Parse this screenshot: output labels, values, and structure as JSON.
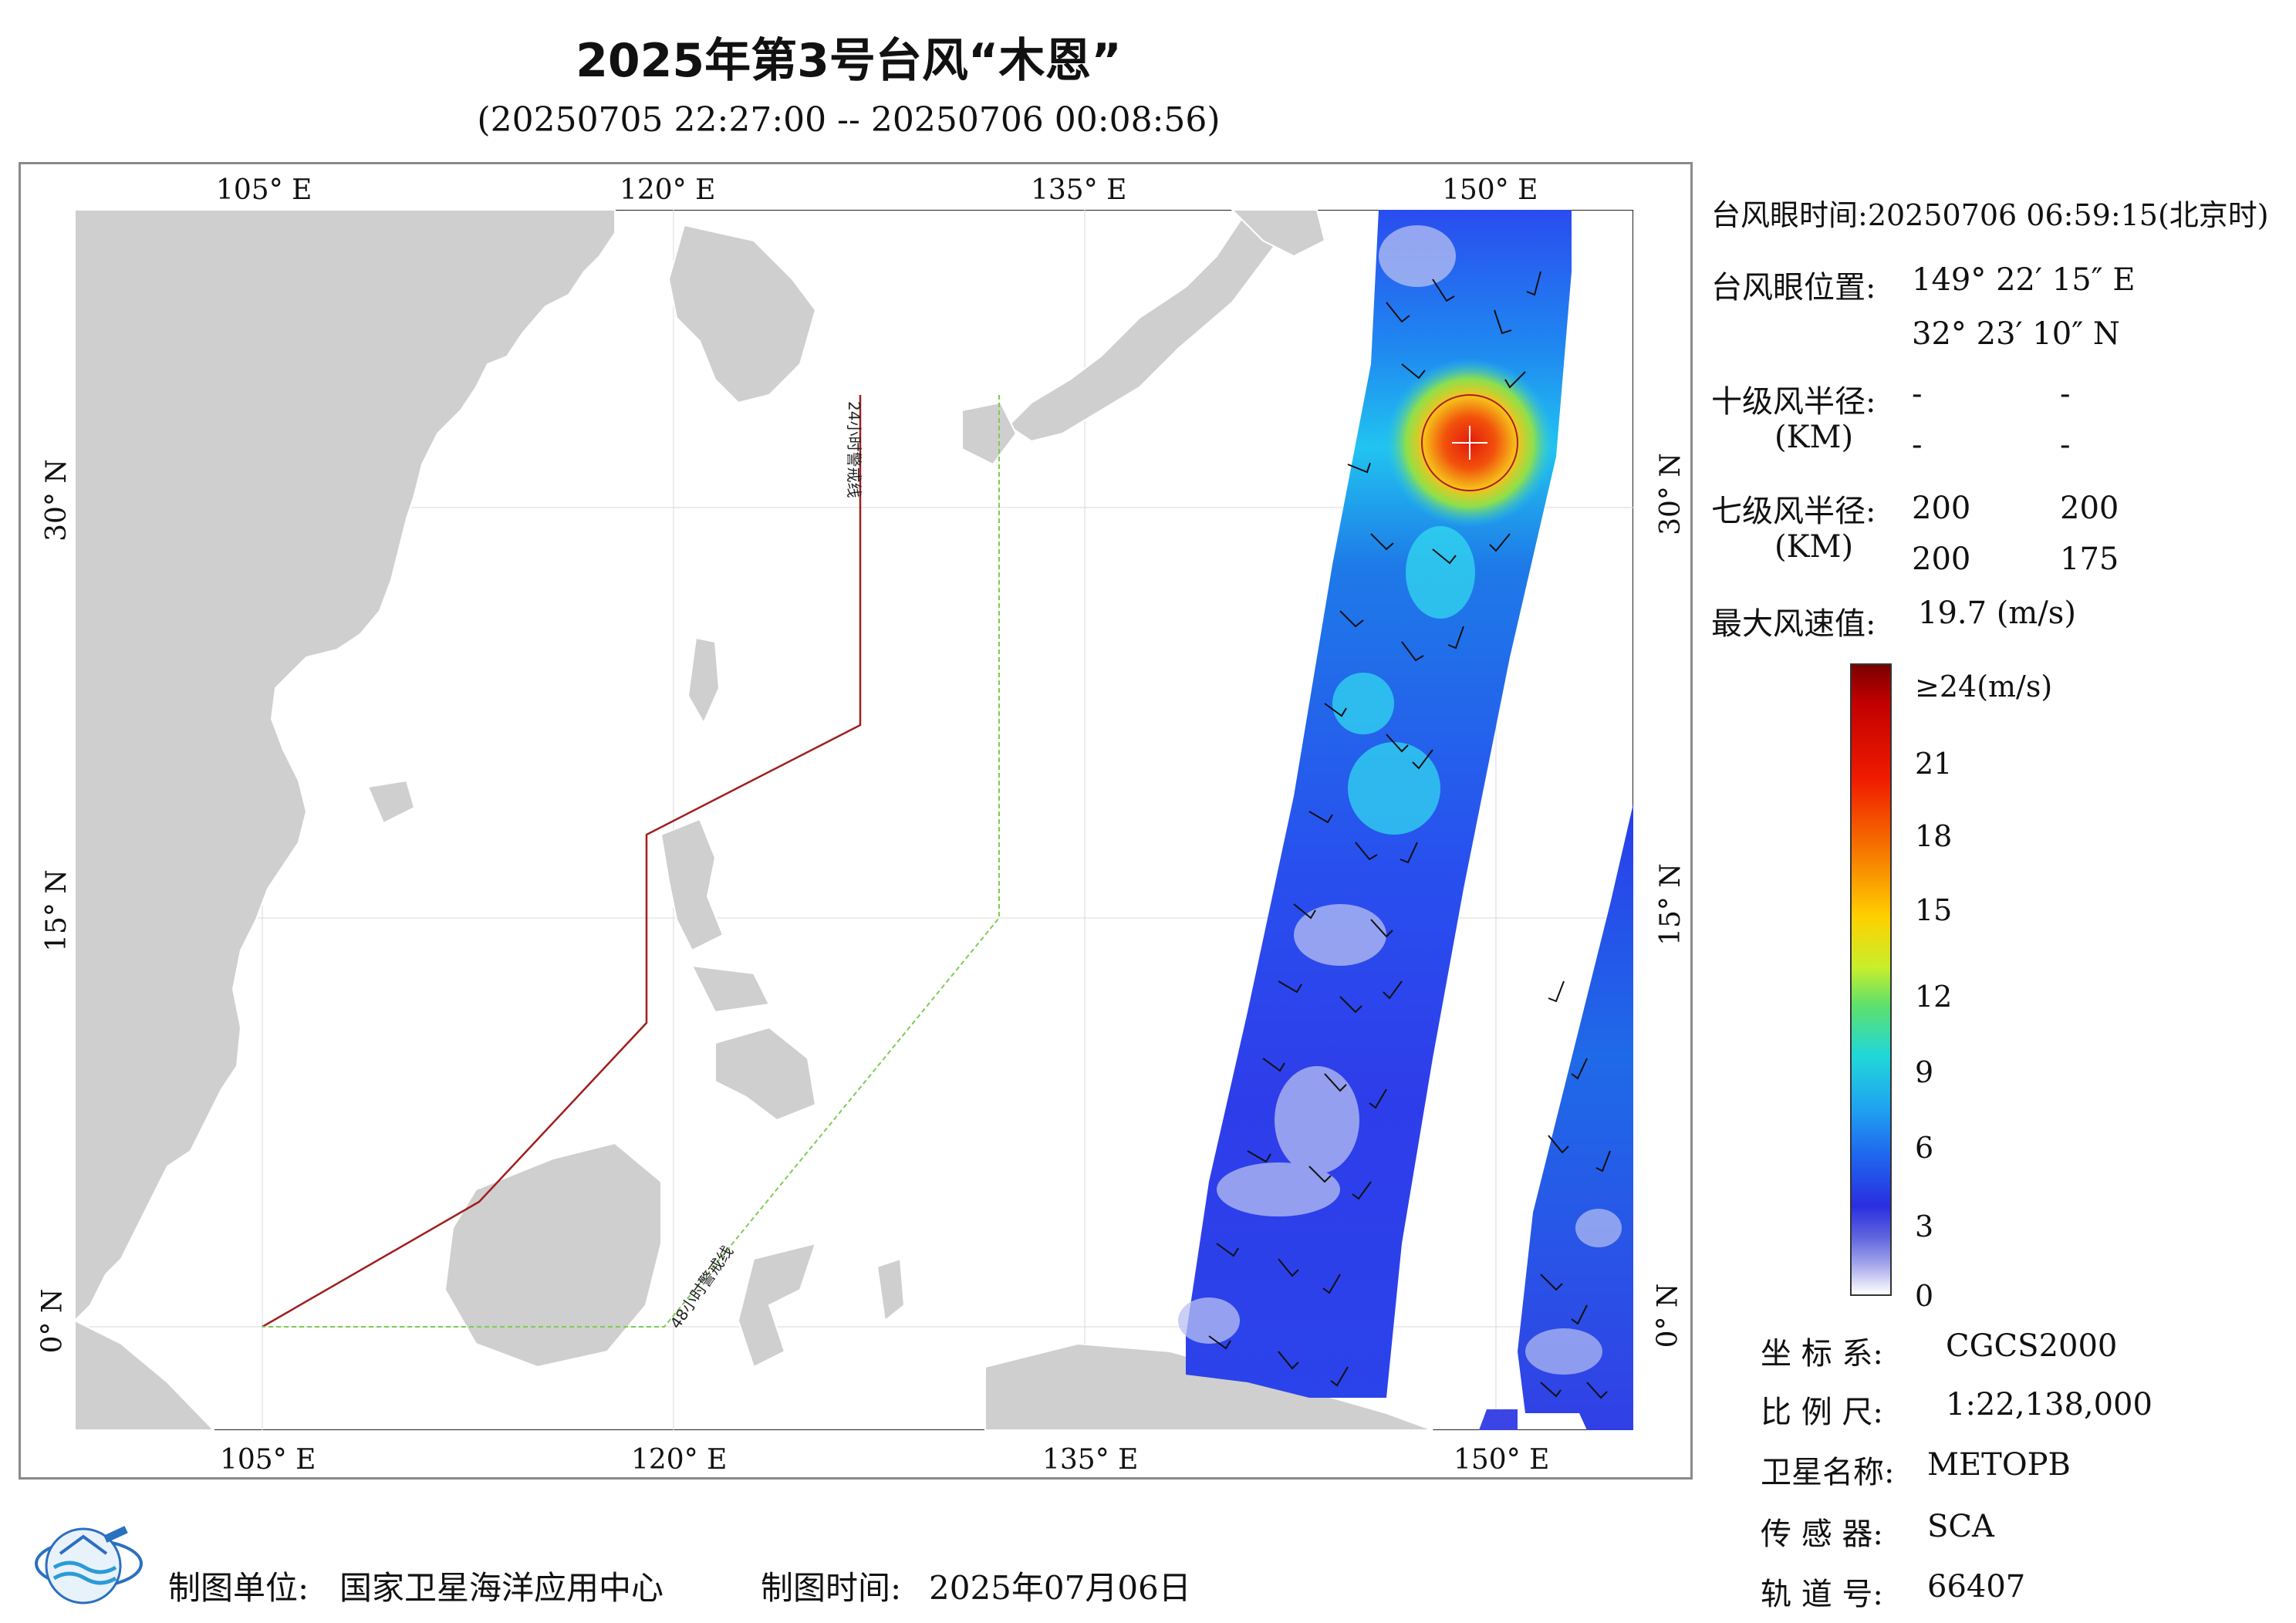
{
  "title": "2025年第3号台风“木恩”",
  "subtitle": "(20250705 22:27:00 -- 20250706 00:08:56)",
  "map": {
    "lon_ticks": [
      "105° E",
      "120° E",
      "135° E",
      "150° E"
    ],
    "lat_ticks": [
      "30° N",
      "15° N",
      "0° N"
    ],
    "warning_24h": "24小时警戒线",
    "warning_48h": "48小时警戒线",
    "colors": {
      "land": "#cfcfcf",
      "warning_24h": "#a11d1d",
      "warning_48h": "#7ccc55"
    }
  },
  "info": {
    "eye_time_label": "台风眼时间:",
    "eye_time": "20250706 06:59:15(北京时)",
    "eye_pos_label": "台风眼位置:",
    "eye_lon": "149° 22′ 15″ E",
    "eye_lat": "32° 23′ 10″ N",
    "r10_label": "十级风半径:",
    "r10_unit": "(KM)",
    "r10_values": [
      "-",
      "-",
      "-",
      "-"
    ],
    "r7_label": "七级风半径:",
    "r7_unit": "(KM)",
    "r7_values": [
      "200",
      "200",
      "200",
      "175"
    ],
    "max_wind_label": "最大风速值:",
    "max_wind": "19.7 (m/s)"
  },
  "colorbar": {
    "labels": [
      "≥24(m/s)",
      "21",
      "18",
      "15",
      "12",
      "9",
      "6",
      "3",
      "0"
    ]
  },
  "meta": {
    "coord_label": "坐 标 系:",
    "coord": "CGCS2000",
    "scale_label": "比 例 尺:",
    "scale": "1:22,138,000",
    "sat_label": "卫星名称:",
    "sat": "METOPB",
    "sensor_label": "传 感 器:",
    "sensor": "SCA",
    "orbit_label": "轨 道 号:",
    "orbit": "66407"
  },
  "footer": {
    "maker_label": "制图单位:",
    "maker": "国家卫星海洋应用中心",
    "date_label": "制图时间:",
    "date": "2025年07月06日"
  }
}
